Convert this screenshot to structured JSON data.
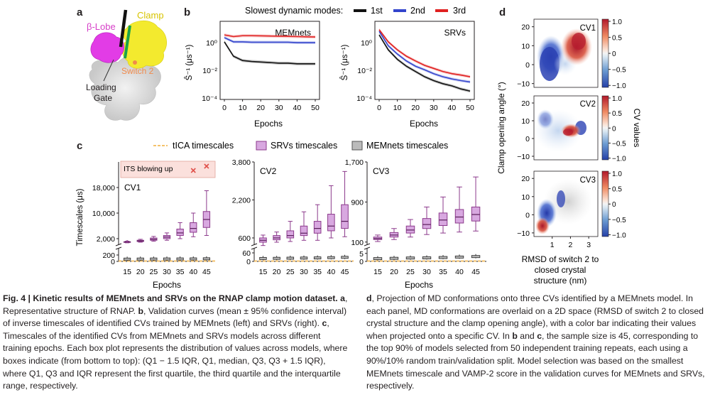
{
  "panels": {
    "a": {
      "label": "a",
      "parts": [
        {
          "text": "β-Lobe",
          "color": "#d63fc8"
        },
        {
          "text": "Clamp",
          "color": "#e8d21a"
        },
        {
          "text": "Switch 2",
          "color": "#f08a4b"
        },
        {
          "text": "Loading",
          "color": "#231f20"
        },
        {
          "text": "Gate",
          "color": "#231f20"
        }
      ],
      "colors": {
        "beta_lobe": "#e23ce6",
        "clamp": "#f3ea2e",
        "switch2": "#1aa34a",
        "gate": "#111111",
        "body": "#dcdcdc"
      }
    },
    "b": {
      "label": "b",
      "legend_title": "Slowest dynamic modes:",
      "ylabel": "Ŝ⁻¹ (μs⁻¹)",
      "xlabel": "Epochs",
      "legend": [
        {
          "name": "1st",
          "color": "#111111"
        },
        {
          "name": "2nd",
          "color": "#3344cc"
        },
        {
          "name": "3rd",
          "color": "#e02020"
        }
      ]
    },
    "c": {
      "label": "c",
      "legend": [
        {
          "name": "tICA timescales",
          "color": "#f5c26b"
        },
        {
          "name": "SRVs timescales",
          "color": "#d8a8e0"
        },
        {
          "name": "MEMnets timescales",
          "color": "#bbbbbb"
        }
      ],
      "ylabel": "Timescales (μs)",
      "xlabel": "Epochs",
      "annotation": "ITS blowing up"
    },
    "d": {
      "label": "d",
      "ylabel": "Clamp opening angle (°)",
      "xlabel_lines": [
        "RMSD of switch 2 to",
        "closed crystal",
        "structure (nm)"
      ],
      "colorbar_label": "CV values",
      "colorbar_ticks": [
        "1.0",
        "0.5",
        "0",
        "−0.5",
        "−1.0"
      ],
      "yticks": [
        "20",
        "10",
        "0",
        "−10"
      ],
      "xticks": [
        "1",
        "2",
        "3"
      ],
      "colormap": [
        "#b2182b",
        "#ef8a62",
        "#fddbc7",
        "#f7f7f7",
        "#d1e5f0",
        "#67a9cf",
        "#2166ac"
      ]
    }
  },
  "chart_data": [
    {
      "id": "b-left",
      "type": "line",
      "title": "MEMnets",
      "x": [
        0,
        5,
        10,
        15,
        20,
        25,
        30,
        35,
        40,
        45,
        50
      ],
      "xticks": [
        "0",
        "10",
        "20",
        "30",
        "40",
        "50"
      ],
      "yscale": "log",
      "ylim": [
        0.0001,
        3
      ],
      "yticks": [
        "10⁰",
        "10⁻²",
        "10⁻⁴"
      ],
      "series": [
        {
          "name": "1st",
          "values": [
            0.2,
            0.03,
            0.017,
            0.015,
            0.014,
            0.013,
            0.012,
            0.012,
            0.011,
            0.011,
            0.011
          ]
        },
        {
          "name": "2nd",
          "values": [
            0.35,
            0.2,
            0.2,
            0.19,
            0.19,
            0.19,
            0.19,
            0.19,
            0.18,
            0.18,
            0.18
          ]
        },
        {
          "name": "3rd",
          "values": [
            0.5,
            0.4,
            0.45,
            0.45,
            0.44,
            0.43,
            0.42,
            0.41,
            0.4,
            0.39,
            0.38
          ]
        }
      ]
    },
    {
      "id": "b-right",
      "type": "line",
      "title": "SRVs",
      "x": [
        0,
        5,
        10,
        15,
        20,
        25,
        30,
        35,
        40,
        45,
        50
      ],
      "xticks": [
        "0",
        "10",
        "20",
        "30",
        "40",
        "50"
      ],
      "yscale": "log",
      "ylim": [
        0.0001,
        3
      ],
      "yticks": [
        "10⁰",
        "10⁻²",
        "10⁻⁴"
      ],
      "series": [
        {
          "name": "1st",
          "values": [
            0.5,
            0.07,
            0.02,
            0.008,
            0.004,
            0.002,
            0.0012,
            0.0008,
            0.0006,
            0.0004,
            0.0003
          ]
        },
        {
          "name": "2nd",
          "values": [
            0.8,
            0.12,
            0.04,
            0.016,
            0.008,
            0.005,
            0.003,
            0.002,
            0.0015,
            0.0012,
            0.001
          ]
        },
        {
          "name": "3rd",
          "values": [
            1.0,
            0.2,
            0.07,
            0.03,
            0.016,
            0.009,
            0.006,
            0.004,
            0.003,
            0.0025,
            0.002
          ]
        }
      ]
    },
    {
      "id": "c-cv1",
      "type": "box",
      "title": "CV1",
      "categories": [
        "15",
        "20",
        "25",
        "30",
        "35",
        "40",
        "45"
      ],
      "upper_ticks": [
        "18,000",
        "10,000",
        "2,000"
      ],
      "lower_ticks": [
        "200",
        "0"
      ],
      "srvs": [
        {
          "q1": 850,
          "median": 960,
          "q3": 1050,
          "low": 700,
          "high": 1200
        },
        {
          "q1": 1100,
          "median": 1300,
          "q3": 1500,
          "low": 900,
          "high": 1800
        },
        {
          "q1": 1500,
          "median": 1800,
          "q3": 2200,
          "low": 1200,
          "high": 2700
        },
        {
          "q1": 2000,
          "median": 2500,
          "q3": 3000,
          "low": 1500,
          "high": 3800
        },
        {
          "q1": 3000,
          "median": 3800,
          "q3": 5000,
          "low": 2000,
          "high": 7000
        },
        {
          "q1": 4000,
          "median": 5200,
          "q3": 7000,
          "low": 2600,
          "high": 10000
        },
        {
          "q1": 5500,
          "median": 8000,
          "q3": 10500,
          "low": 3000,
          "high": 17000
        }
      ],
      "srvs_outliers": [
        {
          "x": "15",
          "y": 200
        }
      ],
      "memnets": [
        60,
        62,
        63,
        64,
        65,
        66,
        70
      ],
      "its_blowup": [
        {
          "x": "40",
          "y": 23000
        },
        {
          "x": "45",
          "y": 24500
        }
      ]
    },
    {
      "id": "c-cv2",
      "type": "box",
      "title": "CV2",
      "categories": [
        "15",
        "20",
        "25",
        "30",
        "35",
        "40",
        "45"
      ],
      "upper_ticks": [
        "3,800",
        "2,200",
        "600"
      ],
      "lower_ticks": [
        "60",
        "0"
      ],
      "srvs": [
        {
          "q1": 420,
          "median": 500,
          "q3": 600,
          "low": 280,
          "high": 720
        },
        {
          "q1": 520,
          "median": 600,
          "q3": 700,
          "low": 420,
          "high": 850
        },
        {
          "q1": 600,
          "median": 700,
          "q3": 900,
          "low": 450,
          "high": 1300
        },
        {
          "q1": 700,
          "median": 800,
          "q3": 1100,
          "low": 500,
          "high": 1700
        },
        {
          "q1": 800,
          "median": 1000,
          "q3": 1300,
          "low": 500,
          "high": 2000
        },
        {
          "q1": 900,
          "median": 1100,
          "q3": 1600,
          "low": 600,
          "high": 2800
        },
        {
          "q1": 1000,
          "median": 1300,
          "q3": 2000,
          "low": 650,
          "high": 3400
        }
      ],
      "memnets": [
        18,
        19,
        20,
        21,
        22,
        24,
        26
      ]
    },
    {
      "id": "c-cv3",
      "type": "box",
      "title": "CV3",
      "categories": [
        "15",
        "20",
        "25",
        "30",
        "35",
        "40",
        "45"
      ],
      "upper_ticks": [
        "1,700",
        "900",
        "100"
      ],
      "lower_ticks": [
        "5",
        "0"
      ],
      "srvs": [
        {
          "q1": 150,
          "median": 170,
          "q3": 200,
          "low": 110,
          "high": 240
        },
        {
          "q1": 200,
          "median": 240,
          "q3": 290,
          "low": 150,
          "high": 370
        },
        {
          "q1": 280,
          "median": 340,
          "q3": 420,
          "low": 200,
          "high": 550
        },
        {
          "q1": 370,
          "median": 450,
          "q3": 570,
          "low": 250,
          "high": 800
        },
        {
          "q1": 430,
          "median": 540,
          "q3": 680,
          "low": 280,
          "high": 1000
        },
        {
          "q1": 480,
          "median": 600,
          "q3": 750,
          "low": 300,
          "high": 1200
        },
        {
          "q1": 520,
          "median": 650,
          "q3": 800,
          "low": 320,
          "high": 1400
        }
      ],
      "memnets": [
        1.5,
        1.7,
        1.9,
        2.0,
        2.2,
        2.5,
        2.8
      ]
    },
    {
      "id": "d-panels",
      "type": "scatter",
      "panels": [
        "CV1",
        "CV2",
        "CV3"
      ],
      "xlim": [
        0,
        3.5
      ],
      "ylim": [
        -12,
        24
      ],
      "clim": [
        -1,
        1
      ]
    }
  ],
  "caption": {
    "left_title": "Fig. 4 | Kinetic results of MEMnets and SRVs on the RNAP clamp motion dataset.",
    "left_body": [
      {
        "label": "a",
        "text": ", Representative structure of RNAP. "
      },
      {
        "label": "b",
        "text": ", Validation curves (mean ± 95% confidence interval) of inverse timescales of identified CVs trained by MEMnets (left) and SRVs (right). "
      },
      {
        "label": "c",
        "text": ", Timescales of the identified CVs from MEMnets and SRVs models across different training epochs. Each box plot represents the distribution of values across models, where boxes indicate (from bottom to top): (Q1 − 1.5 IQR, Q1, median, Q3, Q3 + 1.5 IQR), where Q1, Q3 and IQR represent the first quartile, the third quartile and the interquartile range, respectively."
      }
    ],
    "right_body": [
      {
        "label": "d",
        "text": ", Projection of MD conformations onto three CVs identified by a MEMnets model. In each panel, MD conformations are overlaid on a 2D space (RMSD of switch 2 to closed crystal structure and the clamp opening angle), with a color bar indicating their values when projected onto a specific CV. In "
      },
      {
        "label": "b",
        "text": " and "
      },
      {
        "label": "c",
        "text": ", the sample size is 45, corresponding to the top 90% of models selected from 50 independent training repeats, each using a 90%/10% random train/validation split. Model selection was based on the smallest MEMnets timescale and VAMP-2 score in the validation curves for MEMnets and SRVs, respectively."
      }
    ]
  }
}
